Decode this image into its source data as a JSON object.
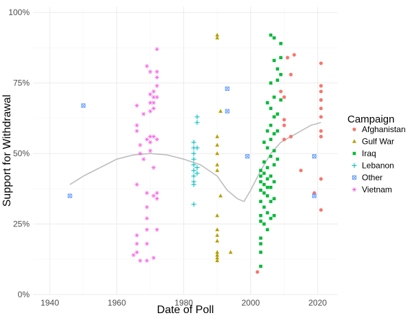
{
  "chart_data": {
    "type": "scatter",
    "xlabel": "Date of Poll",
    "ylabel": "Support for Withdrawal",
    "xlim": [
      1935,
      2026
    ],
    "ylim": [
      0,
      1.02
    ],
    "x_ticks": [
      1940,
      1960,
      1980,
      2000,
      2020
    ],
    "x_tick_labels": [
      "1940",
      "1960",
      "1980",
      "2000",
      "2020"
    ],
    "y_ticks": [
      0,
      0.25,
      0.5,
      0.75,
      1.0
    ],
    "y_tick_labels": [
      "0%",
      "25%",
      "50%",
      "75%",
      "100%"
    ],
    "legend": {
      "title": "Campaign",
      "position": "right"
    },
    "series": [
      {
        "name": "Afghanistan",
        "color": "#F8766D",
        "shape": "circle",
        "points": [
          [
            2002,
            0.08
          ],
          [
            2009,
            0.72
          ],
          [
            2010,
            0.7
          ],
          [
            2010,
            0.62
          ],
          [
            2010,
            0.6
          ],
          [
            2010,
            0.55
          ],
          [
            2011,
            0.84
          ],
          [
            2012,
            0.78
          ],
          [
            2012,
            0.56
          ],
          [
            2013,
            0.85
          ],
          [
            2015,
            0.44
          ],
          [
            2019,
            0.36
          ],
          [
            2021,
            0.82
          ],
          [
            2021,
            0.74
          ],
          [
            2021,
            0.72
          ],
          [
            2021,
            0.69
          ],
          [
            2021,
            0.66
          ],
          [
            2021,
            0.63
          ],
          [
            2021,
            0.58
          ],
          [
            2021,
            0.56
          ],
          [
            2021,
            0.41
          ],
          [
            2021,
            0.3
          ]
        ]
      },
      {
        "name": "Gulf War",
        "color": "#B79F00",
        "shape": "triangle",
        "points": [
          [
            1990,
            0.92
          ],
          [
            1990,
            0.91
          ],
          [
            1990,
            0.56
          ],
          [
            1990,
            0.53
          ],
          [
            1990,
            0.5
          ],
          [
            1990,
            0.46
          ],
          [
            1990,
            0.44
          ],
          [
            1990,
            0.28
          ],
          [
            1990,
            0.23
          ],
          [
            1990,
            0.21
          ],
          [
            1990,
            0.19
          ],
          [
            1990,
            0.15
          ],
          [
            1990,
            0.14
          ],
          [
            1990,
            0.13
          ],
          [
            1990,
            0.12
          ],
          [
            1991,
            0.65
          ],
          [
            1991,
            0.35
          ],
          [
            1994,
            0.15
          ]
        ]
      },
      {
        "name": "Iraq",
        "color": "#00BA38",
        "shape": "square",
        "points": [
          [
            2003,
            0.44
          ],
          [
            2003,
            0.42
          ],
          [
            2003,
            0.4
          ],
          [
            2003,
            0.37
          ],
          [
            2003,
            0.33
          ],
          [
            2003,
            0.28
          ],
          [
            2003,
            0.26
          ],
          [
            2003,
            0.2
          ],
          [
            2003,
            0.18
          ],
          [
            2003,
            0.15
          ],
          [
            2003,
            0.1
          ],
          [
            2004,
            0.54
          ],
          [
            2004,
            0.47
          ],
          [
            2004,
            0.43
          ],
          [
            2004,
            0.39
          ],
          [
            2004,
            0.36
          ],
          [
            2004,
            0.31
          ],
          [
            2004,
            0.25
          ],
          [
            2005,
            0.68
          ],
          [
            2005,
            0.58
          ],
          [
            2005,
            0.52
          ],
          [
            2005,
            0.45
          ],
          [
            2005,
            0.41
          ],
          [
            2005,
            0.38
          ],
          [
            2005,
            0.35
          ],
          [
            2005,
            0.29
          ],
          [
            2005,
            0.23
          ],
          [
            2006,
            0.92
          ],
          [
            2006,
            0.75
          ],
          [
            2006,
            0.66
          ],
          [
            2006,
            0.6
          ],
          [
            2006,
            0.55
          ],
          [
            2006,
            0.49
          ],
          [
            2006,
            0.42
          ],
          [
            2006,
            0.38
          ],
          [
            2006,
            0.33
          ],
          [
            2006,
            0.27
          ],
          [
            2007,
            0.91
          ],
          [
            2007,
            0.83
          ],
          [
            2007,
            0.7
          ],
          [
            2007,
            0.63
          ],
          [
            2007,
            0.57
          ],
          [
            2007,
            0.51
          ],
          [
            2007,
            0.46
          ],
          [
            2007,
            0.4
          ],
          [
            2007,
            0.34
          ],
          [
            2007,
            0.28
          ],
          [
            2008,
            0.8
          ],
          [
            2008,
            0.76
          ],
          [
            2008,
            0.64
          ],
          [
            2008,
            0.58
          ],
          [
            2008,
            0.48
          ],
          [
            2009,
            0.89
          ],
          [
            2009,
            0.84
          ],
          [
            2009,
            0.78
          ],
          [
            2009,
            0.69
          ]
        ]
      },
      {
        "name": "Lebanon",
        "color": "#00BFC4",
        "shape": "plus",
        "points": [
          [
            1983,
            0.54
          ],
          [
            1983,
            0.52
          ],
          [
            1983,
            0.5
          ],
          [
            1983,
            0.48
          ],
          [
            1983,
            0.46
          ],
          [
            1983,
            0.44
          ],
          [
            1983,
            0.42
          ],
          [
            1983,
            0.4
          ],
          [
            1983,
            0.39
          ],
          [
            1983,
            0.32
          ],
          [
            1984,
            0.63
          ],
          [
            1984,
            0.61
          ],
          [
            1984,
            0.52
          ],
          [
            1984,
            0.45
          ],
          [
            1984,
            0.43
          ]
        ]
      },
      {
        "name": "Other",
        "color": "#619CFF",
        "shape": "square-cross",
        "points": [
          [
            1946,
            0.35
          ],
          [
            1950,
            0.67
          ],
          [
            1993,
            0.73
          ],
          [
            1993,
            0.65
          ],
          [
            1999,
            0.49
          ],
          [
            2019,
            0.49
          ],
          [
            2019,
            0.35
          ]
        ]
      },
      {
        "name": "Vietnam",
        "color": "#F564E3",
        "shape": "asterisk",
        "points": [
          [
            1965,
            0.14
          ],
          [
            1966,
            0.67
          ],
          [
            1966,
            0.6
          ],
          [
            1966,
            0.58
          ],
          [
            1966,
            0.39
          ],
          [
            1966,
            0.21
          ],
          [
            1966,
            0.18
          ],
          [
            1966,
            0.15
          ],
          [
            1967,
            0.53
          ],
          [
            1967,
            0.5
          ],
          [
            1967,
            0.12
          ],
          [
            1968,
            0.64
          ],
          [
            1968,
            0.48
          ],
          [
            1969,
            0.81
          ],
          [
            1969,
            0.55
          ],
          [
            1969,
            0.36
          ],
          [
            1969,
            0.31
          ],
          [
            1969,
            0.27
          ],
          [
            1969,
            0.23
          ],
          [
            1969,
            0.18
          ],
          [
            1969,
            0.12
          ],
          [
            1970,
            0.79
          ],
          [
            1970,
            0.71
          ],
          [
            1970,
            0.68
          ],
          [
            1970,
            0.65
          ],
          [
            1970,
            0.56
          ],
          [
            1970,
            0.54
          ],
          [
            1970,
            0.51
          ],
          [
            1971,
            0.72
          ],
          [
            1971,
            0.7
          ],
          [
            1971,
            0.68
          ],
          [
            1971,
            0.66
          ],
          [
            1971,
            0.56
          ],
          [
            1971,
            0.45
          ],
          [
            1971,
            0.35
          ],
          [
            1971,
            0.13
          ],
          [
            1972,
            0.87
          ],
          [
            1972,
            0.79
          ],
          [
            1972,
            0.77
          ],
          [
            1972,
            0.74
          ],
          [
            1972,
            0.7
          ],
          [
            1972,
            0.55
          ],
          [
            1972,
            0.36
          ],
          [
            1972,
            0.34
          ],
          [
            1972,
            0.23
          ]
        ]
      }
    ],
    "trend_line": {
      "name": "smooth",
      "color": "#BDBDBD",
      "points": [
        [
          1946,
          0.39
        ],
        [
          1950,
          0.42
        ],
        [
          1955,
          0.45
        ],
        [
          1960,
          0.48
        ],
        [
          1965,
          0.495
        ],
        [
          1970,
          0.5
        ],
        [
          1975,
          0.495
        ],
        [
          1980,
          0.48
        ],
        [
          1985,
          0.46
        ],
        [
          1990,
          0.42
        ],
        [
          1993,
          0.37
        ],
        [
          1996,
          0.34
        ],
        [
          1998,
          0.33
        ],
        [
          2000,
          0.37
        ],
        [
          2003,
          0.44
        ],
        [
          2006,
          0.5
        ],
        [
          2009,
          0.54
        ],
        [
          2012,
          0.56
        ],
        [
          2015,
          0.58
        ],
        [
          2018,
          0.6
        ],
        [
          2021,
          0.61
        ]
      ]
    }
  }
}
